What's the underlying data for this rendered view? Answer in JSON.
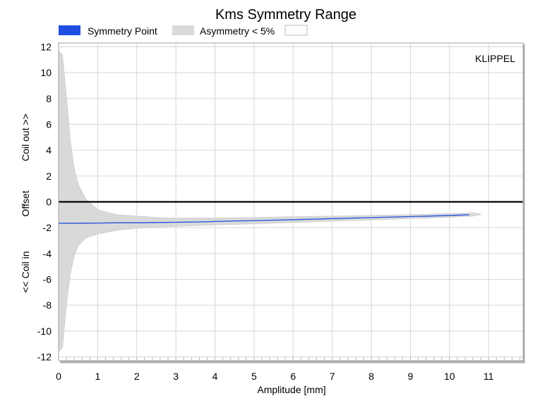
{
  "chart_data": {
    "type": "area",
    "title": "Kms Symmetry Range",
    "xlabel": "Amplitude [mm]",
    "ylabel_parts": [
      "<< Coil in",
      "Offset",
      "Coil out >>"
    ],
    "brand": "KLIPPEL",
    "xlim": [
      0,
      11.9
    ],
    "ylim": [
      -12.3,
      12.3
    ],
    "xticks": [
      0,
      1,
      2,
      3,
      4,
      5,
      6,
      7,
      8,
      9,
      10,
      11
    ],
    "yticks": [
      12,
      10,
      8,
      6,
      4,
      2,
      0,
      -2,
      -4,
      -6,
      -8,
      -10,
      -12
    ],
    "grid": true,
    "legend_position": "top",
    "legend": [
      {
        "label": "Symmetry Point",
        "color": "#1f4fe0"
      },
      {
        "label": "Asymmetry < 5%",
        "color": "#d9d9d9"
      },
      {
        "label": "",
        "color": "#ffffff"
      }
    ],
    "zero_line": 0,
    "series": [
      {
        "name": "Symmetry Point",
        "color": "#1f4fe0",
        "x": [
          0.0,
          0.5,
          1.0,
          1.5,
          2.0,
          2.5,
          3.0,
          3.5,
          4.0,
          4.5,
          5.0,
          5.5,
          6.0,
          6.5,
          7.0,
          7.5,
          8.0,
          8.5,
          9.0,
          9.5,
          10.0,
          10.5
        ],
        "y": [
          -1.65,
          -1.65,
          -1.64,
          -1.62,
          -1.62,
          -1.6,
          -1.58,
          -1.56,
          -1.52,
          -1.48,
          -1.45,
          -1.42,
          -1.38,
          -1.34,
          -1.3,
          -1.26,
          -1.22,
          -1.18,
          -1.14,
          -1.1,
          -1.05,
          -1.0
        ]
      },
      {
        "name": "Asymmetry < 5%",
        "color": "#d9d9d9",
        "x": [
          0.0,
          0.1,
          0.2,
          0.3,
          0.4,
          0.5,
          0.7,
          1.0,
          1.5,
          2.0,
          2.5,
          3.0,
          3.5,
          4.0,
          5.0,
          6.0,
          7.0,
          8.0,
          9.0,
          10.0,
          10.6,
          10.8
        ],
        "upper": [
          11.7,
          11.4,
          8.2,
          4.8,
          2.6,
          1.4,
          0.2,
          -0.6,
          -1.0,
          -1.1,
          -1.2,
          -1.25,
          -1.25,
          -1.25,
          -1.2,
          -1.15,
          -1.1,
          -1.05,
          -0.98,
          -0.9,
          -0.85,
          -0.92
        ],
        "lower": [
          -11.6,
          -11.3,
          -8.0,
          -5.6,
          -4.2,
          -3.4,
          -2.8,
          -2.5,
          -2.2,
          -2.05,
          -1.95,
          -1.9,
          -1.85,
          -1.8,
          -1.7,
          -1.6,
          -1.5,
          -1.4,
          -1.3,
          -1.2,
          -1.1,
          -1.0
        ]
      }
    ]
  }
}
